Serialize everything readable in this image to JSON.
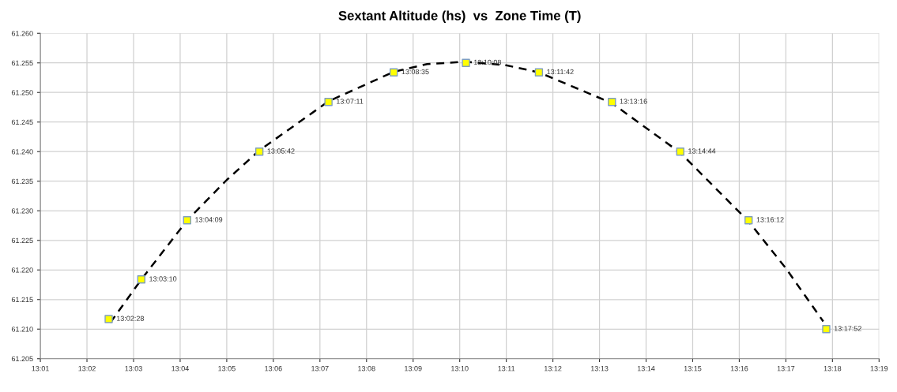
{
  "chart_data": {
    "type": "scatter",
    "title": "Sextant Altitude (hs)  vs  Zone Time (T)",
    "xlim": [
      13.016667,
      13.316667
    ],
    "xticks": [
      {
        "value": 13.016667,
        "label": "13:01"
      },
      {
        "value": 13.033333,
        "label": "13:02"
      },
      {
        "value": 13.05,
        "label": "13:03"
      },
      {
        "value": 13.066667,
        "label": "13:04"
      },
      {
        "value": 13.083333,
        "label": "13:05"
      },
      {
        "value": 13.1,
        "label": "13:06"
      },
      {
        "value": 13.116667,
        "label": "13:07"
      },
      {
        "value": 13.133333,
        "label": "13:08"
      },
      {
        "value": 13.15,
        "label": "13:09"
      },
      {
        "value": 13.166667,
        "label": "13:10"
      },
      {
        "value": 13.183333,
        "label": "13:11"
      },
      {
        "value": 13.2,
        "label": "13:12"
      },
      {
        "value": 13.216667,
        "label": "13:13"
      },
      {
        "value": 13.233333,
        "label": "13:14"
      },
      {
        "value": 13.25,
        "label": "13:15"
      },
      {
        "value": 13.266667,
        "label": "13:16"
      },
      {
        "value": 13.283333,
        "label": "13:17"
      },
      {
        "value": 13.3,
        "label": "13:18"
      },
      {
        "value": 13.316667,
        "label": "13:19"
      }
    ],
    "ylim": [
      61.205,
      61.26
    ],
    "yticks": [
      {
        "value": 61.205,
        "label": "61.205"
      },
      {
        "value": 61.21,
        "label": "61.210"
      },
      {
        "value": 61.215,
        "label": "61.215"
      },
      {
        "value": 61.22,
        "label": "61.220"
      },
      {
        "value": 61.225,
        "label": "61.225"
      },
      {
        "value": 61.23,
        "label": "61.230"
      },
      {
        "value": 61.235,
        "label": "61.235"
      },
      {
        "value": 61.24,
        "label": "61.240"
      },
      {
        "value": 61.245,
        "label": "61.245"
      },
      {
        "value": 61.25,
        "label": "61.250"
      },
      {
        "value": 61.255,
        "label": "61.255"
      },
      {
        "value": 61.26,
        "label": "61.260"
      }
    ],
    "grid": true,
    "series": [
      {
        "type": "line",
        "color": "#000000",
        "line_style": "dashed",
        "marker": "none",
        "x": [
          13.0417,
          13.0528,
          13.0692,
          13.0833,
          13.095,
          13.1197,
          13.1431,
          13.155,
          13.1689,
          13.1833,
          13.195,
          13.2211,
          13.2456,
          13.27,
          13.2833,
          13.2967
        ],
        "values": [
          61.2111,
          61.2184,
          61.2284,
          61.2352,
          61.2402,
          61.2485,
          61.2535,
          61.2548,
          61.2552,
          61.2546,
          61.2534,
          61.2482,
          61.2398,
          61.2282,
          61.2203,
          61.2113
        ]
      },
      {
        "color": "#ffff00",
        "marker": "square",
        "x": [
          13.041111,
          13.052778,
          13.069167,
          13.095,
          13.119722,
          13.143056,
          13.168889,
          13.195,
          13.221111,
          13.245556,
          13.27,
          13.297778
        ],
        "values": [
          61.2117,
          61.2184,
          61.2284,
          61.24,
          61.2484,
          61.2534,
          61.255,
          61.2534,
          61.2484,
          61.24,
          61.2284,
          61.21
        ]
      }
    ],
    "annotations": [
      {
        "text": "13:02:28",
        "x": 13.041111,
        "y": 61.2117
      },
      {
        "text": "13:03:10",
        "x": 13.052778,
        "y": 61.2184
      },
      {
        "text": "13:04:09",
        "x": 13.069167,
        "y": 61.2284
      },
      {
        "text": "13:05:42",
        "x": 13.095,
        "y": 61.24
      },
      {
        "text": "13:07:11",
        "x": 13.119722,
        "y": 61.2484
      },
      {
        "text": "13:08:35",
        "x": 13.143056,
        "y": 61.2534
      },
      {
        "text": "13:10:08",
        "x": 13.168889,
        "y": 61.255
      },
      {
        "text": "13:11:42",
        "x": 13.195,
        "y": 61.2534
      },
      {
        "text": "13:13:16",
        "x": 13.221111,
        "y": 61.2484
      },
      {
        "text": "13:14:44",
        "x": 13.245556,
        "y": 61.24
      },
      {
        "text": "13:16:12",
        "x": 13.27,
        "y": 61.2284
      },
      {
        "text": "13:17:52",
        "x": 13.297778,
        "y": 61.21
      }
    ]
  }
}
